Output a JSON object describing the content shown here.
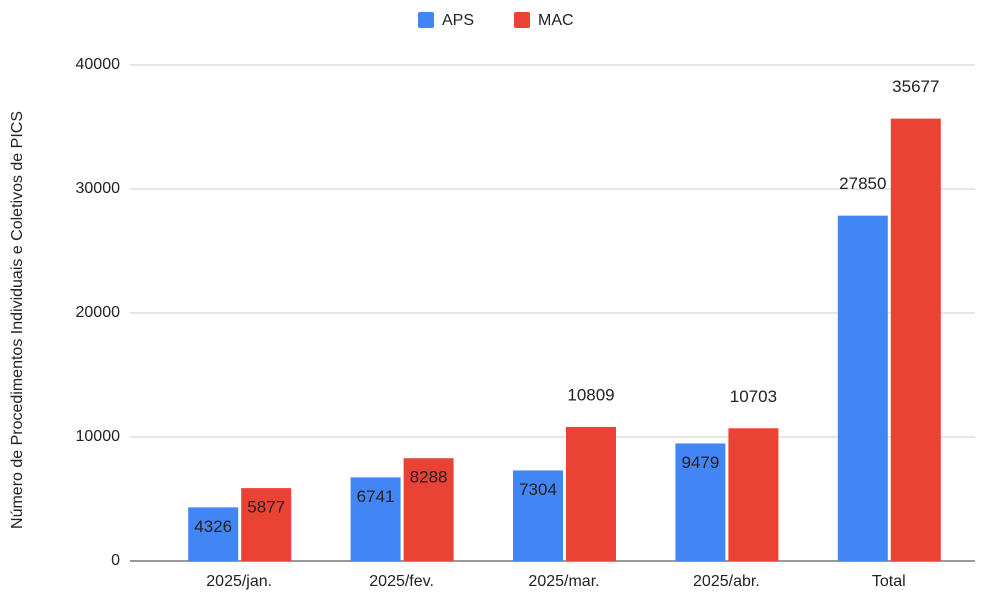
{
  "chart_data": {
    "type": "bar",
    "y_axis_label": "Número de Procedimentos Individuais e Coletivos de PICS",
    "categories": [
      "2025/jan.",
      "2025/fev.",
      "2025/mar.",
      "2025/abr.",
      "Total"
    ],
    "series": [
      {
        "name": "APS",
        "color": "#4285f4",
        "values": [
          4326,
          6741,
          7304,
          9479,
          27850
        ]
      },
      {
        "name": "MAC",
        "color": "#ea4335",
        "values": [
          5877,
          8288,
          10809,
          10703,
          35677
        ]
      }
    ],
    "ylim": [
      0,
      40000
    ],
    "yticks": [
      0,
      10000,
      20000,
      30000,
      40000
    ],
    "grid": true,
    "legend": "top"
  }
}
